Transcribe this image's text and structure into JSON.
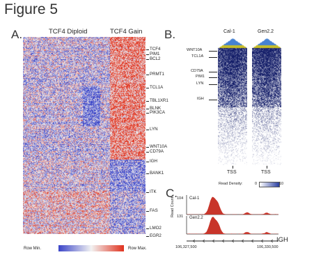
{
  "figure": {
    "title": "Figure 5"
  },
  "panel_a": {
    "letter": "A.",
    "group_left": "TCF4 Diploid",
    "group_right": "TCF4 Gain",
    "genes": [
      "TCF4",
      "PIM1",
      "BCL2",
      "PRMT1",
      "TCL1A",
      "TBL1XR1",
      "BLNK",
      "PIK3CA",
      "LYN",
      "WNT10A",
      "CD79A",
      "IGH",
      "BANK1",
      "ITK",
      "FAS",
      "LMO2",
      "EGR2"
    ],
    "legend_min": "Row Min.",
    "legend_max": "Row Max.",
    "colors": {
      "low": "#3a44c8",
      "mid": "#f2f2f2",
      "high": "#e0321e"
    }
  },
  "panel_b": {
    "letter": "B.",
    "samples": [
      "Cal-1",
      "Gen2.2"
    ],
    "genes": [
      "WNT10A",
      "TCL1A",
      "CD79A",
      "PIM1",
      "LYN",
      "IGH"
    ],
    "tss_label": "TSS",
    "density_label": "Read Density:",
    "density_min": "0",
    "density_max": "10"
  },
  "panel_c": {
    "letter": "C.",
    "y_axis_label": "Read Count",
    "tracks": [
      {
        "name": "Cal-1",
        "ymax": "104"
      },
      {
        "name": "Gen2.2",
        "ymax": "131"
      }
    ],
    "coord_start": "106,327,500",
    "coord_end": "106,330,500",
    "gene": "IGH",
    "peak_color": "#c8352a"
  }
}
